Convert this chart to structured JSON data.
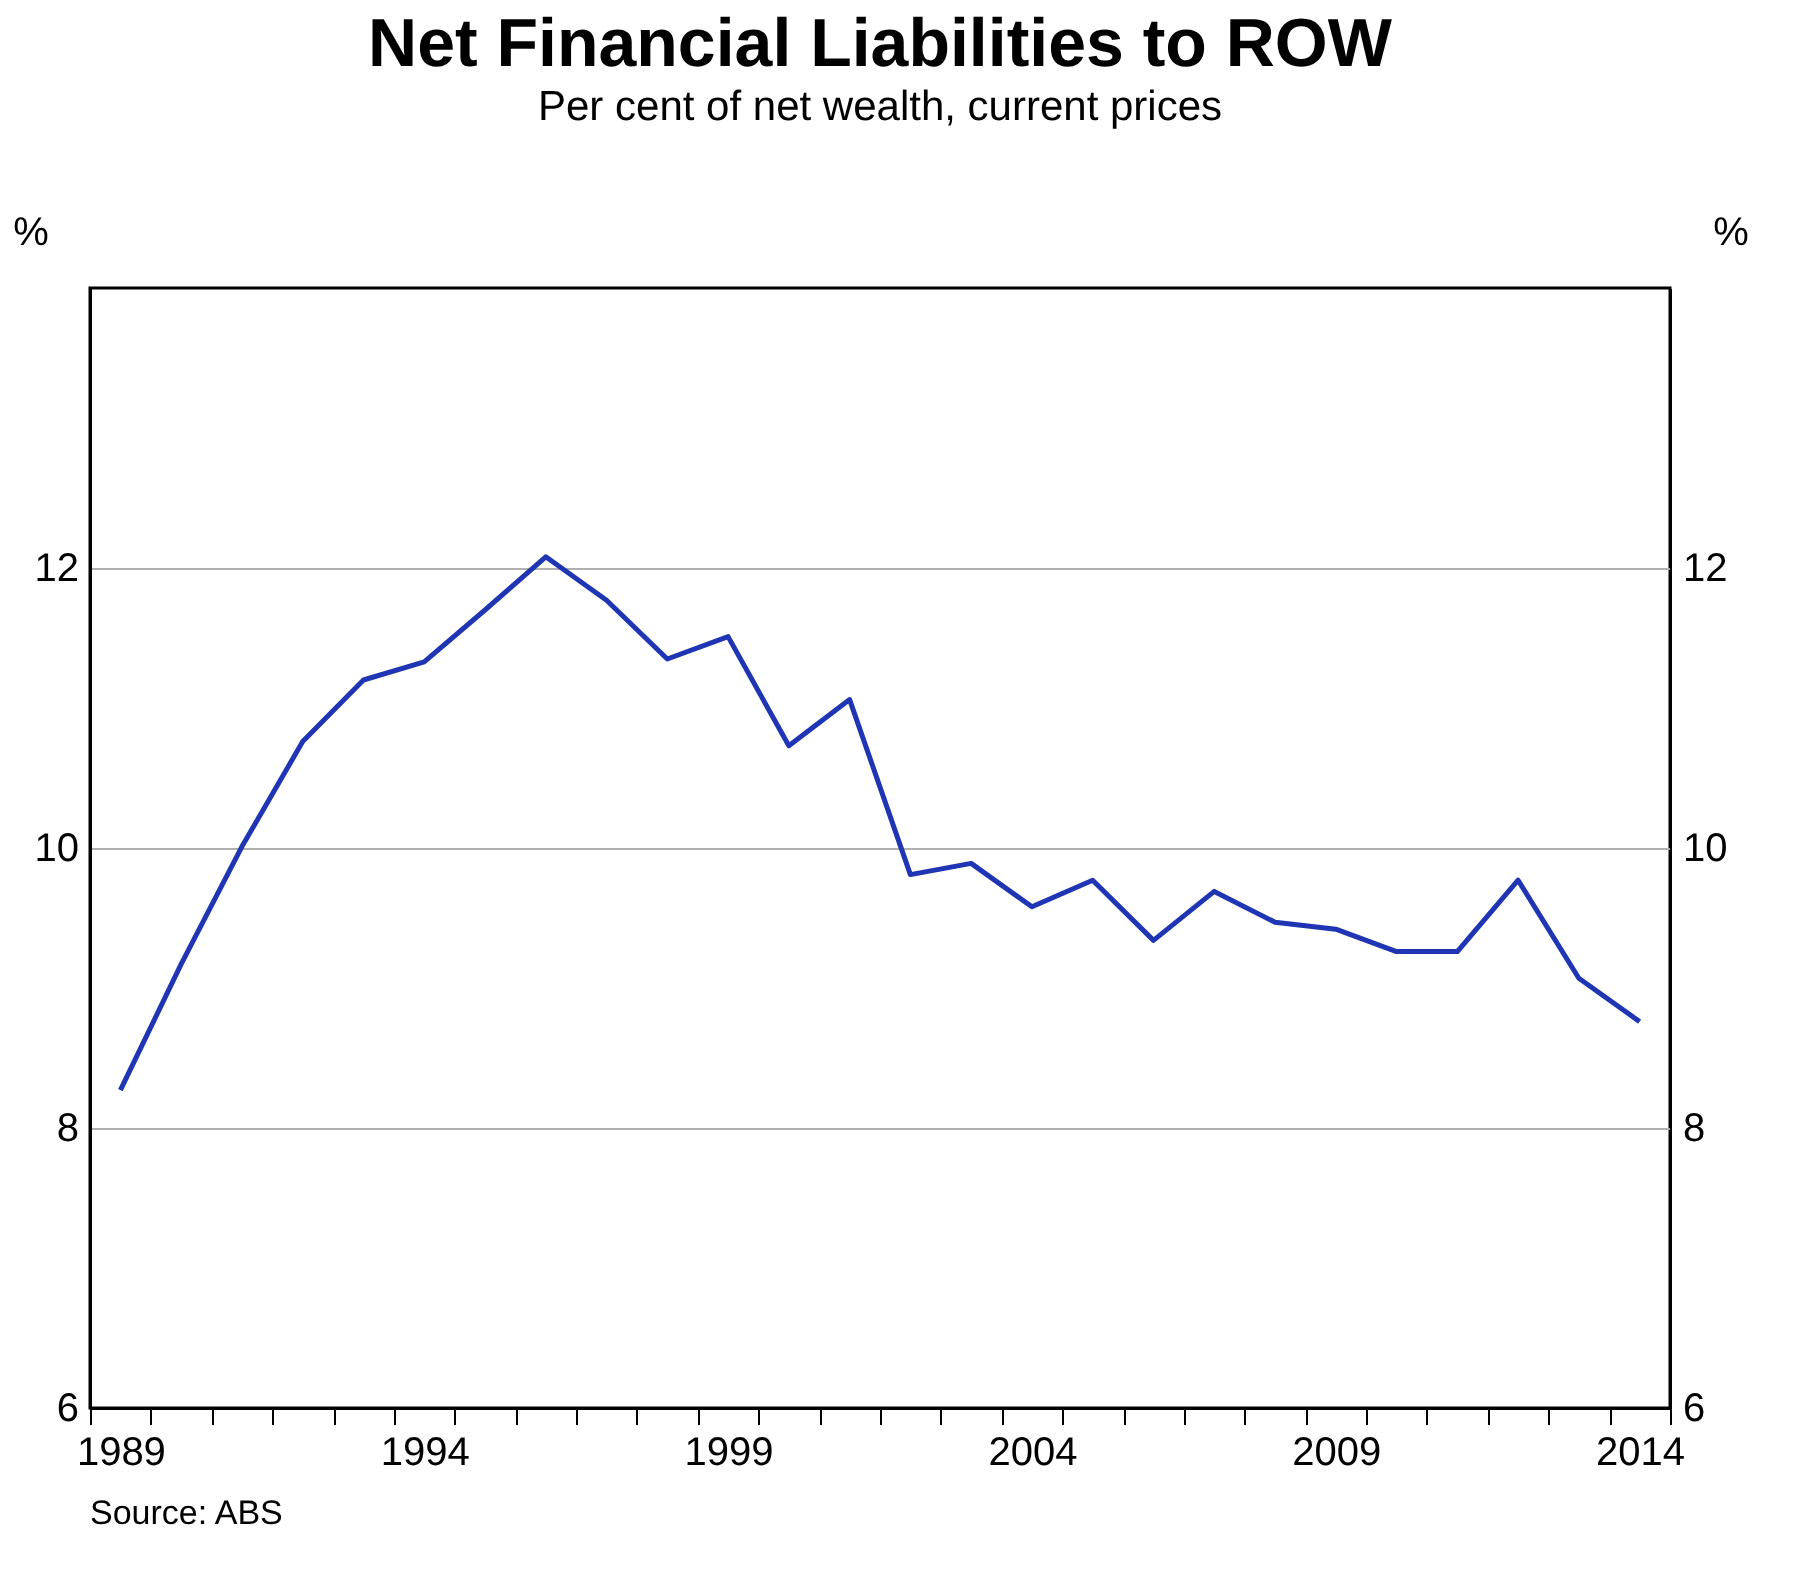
{
  "chart_data": {
    "type": "line",
    "title": "Net Financial Liabilities to ROW",
    "subtitle": "Per cent of net wealth, current prices",
    "ylabel": "%",
    "y2label": "%",
    "categories": [
      "1989",
      null,
      null,
      null,
      null,
      "1994",
      null,
      null,
      null,
      null,
      "1999",
      null,
      null,
      null,
      null,
      "2004",
      null,
      null,
      null,
      null,
      "2009",
      null,
      null,
      null,
      null,
      "2014"
    ],
    "series": [
      {
        "color": "#1f35b4",
        "values": [
          8.27,
          9.17,
          10.01,
          10.76,
          11.2,
          11.33,
          11.7,
          12.08,
          11.77,
          11.35,
          11.51,
          10.73,
          11.06,
          9.81,
          9.89,
          9.58,
          9.77,
          9.34,
          9.69,
          9.47,
          9.42,
          9.26,
          9.26,
          9.77,
          9.07,
          8.76
        ]
      }
    ],
    "ylim": [
      6,
      14
    ],
    "yticks": [
      6,
      8,
      10,
      12
    ],
    "y2lim": [
      6,
      14
    ],
    "y2ticks": [
      6,
      8,
      10,
      12
    ],
    "grid": "y",
    "legend": false,
    "marker": "none",
    "line_style": "solid",
    "annotations": [
      "Source:    ABS"
    ]
  }
}
